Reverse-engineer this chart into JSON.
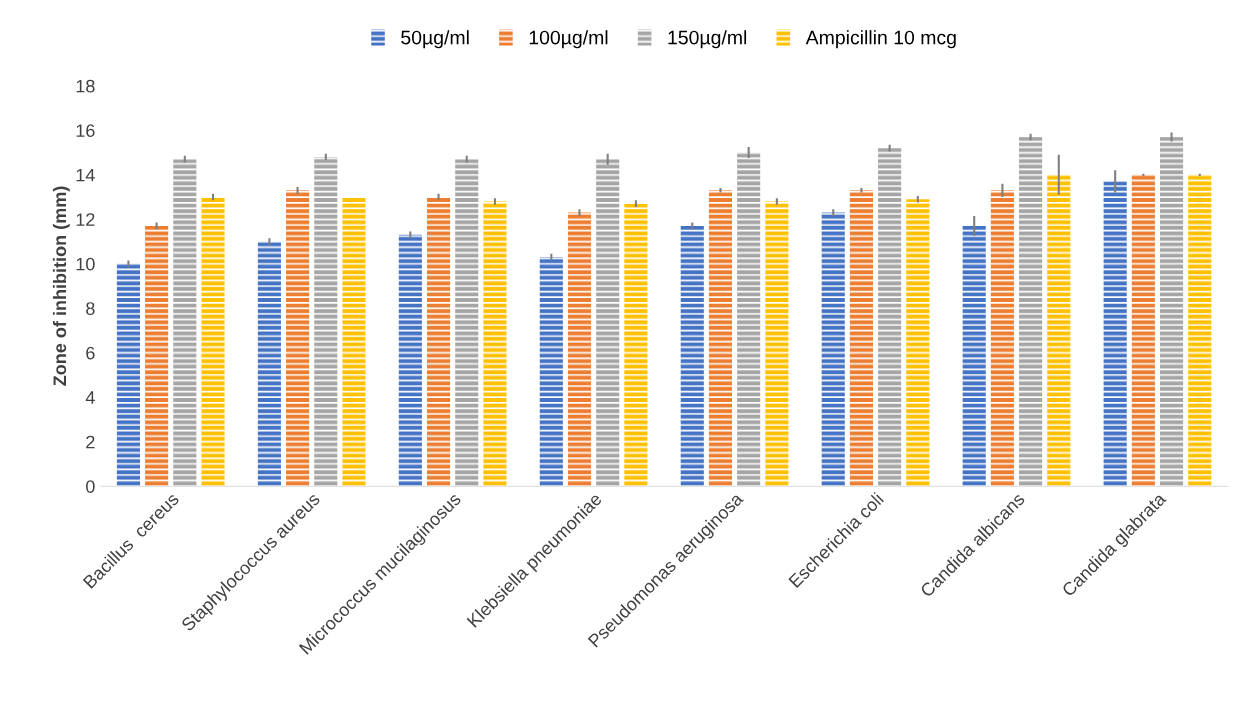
{
  "chart_data": {
    "type": "bar",
    "ylabel": "Zone of inhibition (mm)",
    "categories": [
      "Bacillus  cereus",
      "Staphylococcus aureus",
      "Micrococcus mucilaginosus",
      "Klebsiella pneumoniae",
      "Pseudomonas aeruginosa",
      "Escherichia coli",
      "Candida albicans",
      "Candida glabrata"
    ],
    "series": [
      {
        "name": "50µg/ml",
        "color": "#4472c4",
        "values": [
          10.0,
          11.0,
          11.3,
          10.3,
          11.7,
          12.3,
          11.7,
          13.7
        ],
        "errors": [
          0.15,
          0.15,
          0.15,
          0.15,
          0.15,
          0.15,
          0.45,
          0.5
        ]
      },
      {
        "name": "100µg/ml",
        "color": "#ed7d31",
        "values": [
          11.7,
          13.3,
          13.0,
          12.3,
          13.3,
          13.3,
          13.3,
          14.0
        ],
        "errors": [
          0.15,
          0.15,
          0.15,
          0.15,
          0.1,
          0.1,
          0.3,
          0.05
        ]
      },
      {
        "name": "150µg/ml",
        "color": "#a5a5a5",
        "values": [
          14.7,
          14.8,
          14.7,
          14.7,
          15.0,
          15.2,
          15.7,
          15.7
        ],
        "errors": [
          0.15,
          0.15,
          0.15,
          0.25,
          0.25,
          0.15,
          0.15,
          0.2
        ]
      },
      {
        "name": "Ampicillin 10 mcg",
        "color": "#ffc000",
        "values": [
          13.0,
          13.0,
          12.8,
          12.7,
          12.8,
          12.9,
          14.0,
          14.0
        ],
        "errors": [
          0.15,
          null,
          0.15,
          0.15,
          0.15,
          0.15,
          0.9,
          0.05
        ]
      }
    ],
    "ylim": [
      0,
      18
    ],
    "yticks": [
      0,
      2,
      4,
      6,
      8,
      10,
      12,
      14,
      16,
      18
    ],
    "grid": false,
    "legend": "top"
  }
}
